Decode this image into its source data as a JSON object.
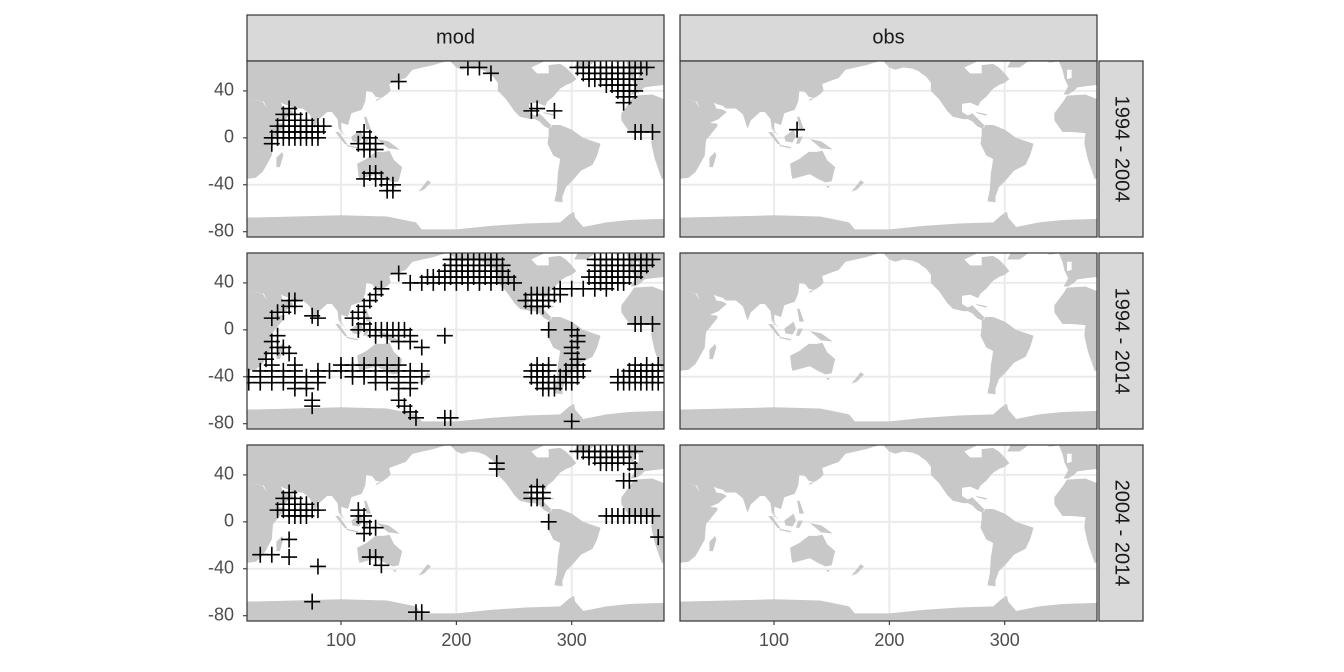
{
  "chart_data": {
    "type": "scatter",
    "columns": [
      "mod",
      "obs"
    ],
    "rows": [
      "1994 - 2004",
      "1994 - 2014",
      "2004 - 2014"
    ],
    "xlim": [
      18.5,
      380
    ],
    "xticks": [
      100,
      200,
      300
    ],
    "ylim": [
      -84.5,
      65.5
    ],
    "yticks": [
      40,
      0,
      -40,
      -80
    ],
    "grid": true,
    "color": "#000000",
    "land_color": "#c8c8c8",
    "panels": [
      [
        {
          "x": [
            40,
            45,
            50,
            55,
            60,
            65,
            70,
            75,
            80,
            45,
            50,
            55,
            60,
            65,
            70,
            75,
            80,
            45,
            50,
            55,
            60,
            65,
            70,
            75,
            80,
            85,
            50,
            55,
            60,
            65,
            70,
            50,
            55,
            60,
            55,
            40,
            120,
            125,
            120,
            125,
            130,
            115,
            120,
            125,
            130,
            120,
            125,
            130,
            130,
            135,
            140,
            145,
            140,
            145,
            150,
            210,
            220,
            230,
            265,
            270,
            285,
            305,
            310,
            315,
            320,
            325,
            330,
            335,
            340,
            345,
            350,
            355,
            360,
            365,
            310,
            315,
            320,
            325,
            330,
            335,
            340,
            345,
            350,
            355,
            315,
            320,
            325,
            330,
            335,
            340,
            345,
            350,
            355,
            330,
            335,
            340,
            345,
            350,
            340,
            345,
            350,
            355,
            345,
            350,
            345,
            355,
            360,
            370
          ],
          "y": [
            0,
            0,
            0,
            0,
            0,
            0,
            0,
            0,
            0,
            5,
            5,
            5,
            5,
            5,
            5,
            5,
            5,
            10,
            10,
            10,
            10,
            10,
            10,
            10,
            10,
            10,
            15,
            15,
            15,
            15,
            15,
            20,
            20,
            20,
            25,
            -5,
            5,
            0,
            -5,
            -5,
            -5,
            -5,
            -10,
            -10,
            -10,
            -35,
            -30,
            -30,
            -35,
            -35,
            -40,
            -40,
            -45,
            -45,
            48,
            60,
            60,
            55,
            23,
            25,
            23,
            60,
            60,
            60,
            60,
            60,
            60,
            60,
            60,
            60,
            60,
            60,
            60,
            60,
            55,
            55,
            55,
            55,
            55,
            55,
            55,
            55,
            55,
            55,
            50,
            50,
            50,
            50,
            50,
            50,
            50,
            50,
            50,
            45,
            45,
            45,
            45,
            45,
            40,
            40,
            40,
            40,
            35,
            35,
            30,
            5,
            5,
            5
          ]
        },
        {
          "x": [
            120
          ],
          "y": [
            7
          ]
        }
      ],
      [
        {
          "x": [
            150,
            195,
            200,
            205,
            210,
            215,
            220,
            225,
            230,
            235,
            195,
            200,
            205,
            210,
            215,
            220,
            225,
            230,
            235,
            240,
            190,
            195,
            200,
            205,
            210,
            215,
            220,
            225,
            230,
            235,
            240,
            175,
            180,
            185,
            190,
            195,
            200,
            205,
            210,
            215,
            220,
            225,
            230,
            235,
            240,
            245,
            160,
            170,
            180,
            190,
            200,
            210,
            220,
            230,
            240,
            250,
            320,
            325,
            330,
            335,
            340,
            345,
            350,
            355,
            360,
            365,
            370,
            320,
            325,
            330,
            335,
            340,
            345,
            350,
            355,
            360,
            365,
            320,
            325,
            330,
            335,
            340,
            345,
            350,
            355,
            360,
            315,
            320,
            325,
            330,
            335,
            340,
            345,
            350,
            355,
            320,
            325,
            330,
            335,
            340,
            345,
            290,
            300,
            310,
            320,
            330,
            265,
            270,
            275,
            280,
            285,
            290,
            260,
            265,
            270,
            275,
            280,
            265,
            270,
            275,
            55,
            60,
            45,
            50,
            55,
            60,
            40,
            80,
            75,
            110,
            115,
            120,
            125,
            130,
            135,
            120,
            120,
            115,
            125,
            130,
            135,
            140,
            145,
            150,
            155,
            130,
            140,
            150,
            160,
            150,
            160,
            170,
            190,
            40,
            60,
            100,
            110,
            120,
            130,
            140,
            150,
            30,
            40,
            50,
            60,
            80,
            90,
            100,
            110,
            120,
            130,
            140,
            150,
            160,
            170,
            20,
            30,
            40,
            50,
            60,
            70,
            80,
            110,
            120,
            130,
            140,
            150,
            160,
            170,
            20,
            30,
            40,
            50,
            60,
            70,
            80,
            130,
            140,
            150,
            160,
            60,
            70,
            150,
            160,
            75,
            75,
            150,
            155,
            160,
            165,
            190,
            195,
            40,
            45,
            50,
            55,
            45,
            40,
            35,
            270,
            280,
            300,
            305,
            265,
            270,
            275,
            280,
            295,
            300,
            305,
            310,
            265,
            270,
            275,
            280,
            290,
            295,
            300,
            305,
            270,
            275,
            280,
            285,
            290,
            295,
            300,
            275,
            280,
            285,
            280,
            300,
            305,
            305,
            300,
            300,
            305,
            355,
            365,
            375,
            350,
            355,
            360,
            365,
            370,
            375,
            340,
            345,
            350,
            355,
            360,
            365,
            370,
            375,
            340,
            345,
            350,
            355,
            360,
            365,
            370,
            375,
            355,
            360,
            370,
            300
          ],
          "y": [
            48,
            60,
            60,
            60,
            60,
            60,
            60,
            60,
            60,
            60,
            55,
            55,
            55,
            55,
            55,
            55,
            55,
            55,
            55,
            55,
            50,
            50,
            50,
            50,
            50,
            50,
            50,
            50,
            50,
            50,
            50,
            45,
            45,
            45,
            45,
            45,
            45,
            45,
            45,
            45,
            45,
            45,
            45,
            45,
            45,
            45,
            40,
            40,
            40,
            40,
            40,
            40,
            40,
            40,
            40,
            40,
            60,
            60,
            60,
            60,
            60,
            60,
            60,
            60,
            60,
            60,
            60,
            55,
            55,
            55,
            55,
            55,
            55,
            55,
            55,
            55,
            55,
            50,
            50,
            50,
            50,
            50,
            50,
            50,
            50,
            50,
            45,
            45,
            45,
            45,
            45,
            45,
            45,
            45,
            45,
            40,
            40,
            40,
            40,
            40,
            40,
            35,
            35,
            35,
            35,
            35,
            30,
            30,
            30,
            30,
            30,
            30,
            25,
            25,
            25,
            25,
            25,
            20,
            20,
            20,
            25,
            25,
            15,
            15,
            20,
            20,
            10,
            10,
            12,
            10,
            15,
            20,
            25,
            30,
            35,
            10,
            5,
            0,
            0,
            0,
            0,
            0,
            0,
            0,
            0,
            -5,
            -5,
            -5,
            -5,
            -10,
            -10,
            -15,
            -5,
            -30,
            -30,
            -30,
            -30,
            -30,
            -30,
            -30,
            -30,
            -35,
            -35,
            -35,
            -35,
            -35,
            -35,
            -35,
            -35,
            -35,
            -35,
            -35,
            -35,
            -35,
            -35,
            -40,
            -40,
            -40,
            -40,
            -40,
            -40,
            -40,
            -40,
            -40,
            -40,
            -40,
            -40,
            -40,
            -40,
            -45,
            -45,
            -45,
            -45,
            -45,
            -45,
            -45,
            -45,
            -45,
            -45,
            -45,
            -50,
            -50,
            -50,
            -50,
            -60,
            -65,
            -60,
            -65,
            -70,
            -75,
            -75,
            -75,
            -20,
            -15,
            -15,
            -20,
            -5,
            -10,
            -25,
            -30,
            -30,
            -30,
            -30,
            -35,
            -35,
            -35,
            -35,
            -35,
            -35,
            -35,
            -35,
            -40,
            -40,
            -40,
            -40,
            -40,
            -40,
            -40,
            -40,
            -45,
            -45,
            -45,
            -45,
            -45,
            -45,
            -45,
            -50,
            -50,
            -50,
            0,
            0,
            -5,
            -10,
            -15,
            -20,
            -25,
            -30,
            -30,
            -30,
            -35,
            -35,
            -35,
            -35,
            -35,
            -35,
            -40,
            -40,
            -40,
            -40,
            -40,
            -40,
            -40,
            -40,
            -45,
            -45,
            -45,
            -45,
            -45,
            -45,
            -45,
            -45,
            5,
            5,
            5,
            -78
          ]
        },
        {
          "x": [],
          "y": []
        }
      ],
      [
        {
          "x": [
            45,
            50,
            55,
            60,
            65,
            70,
            75,
            80,
            50,
            55,
            60,
            65,
            70,
            50,
            55,
            60,
            55,
            55,
            60,
            65,
            70,
            55,
            55,
            30,
            40,
            80,
            75,
            115,
            120,
            120,
            125,
            130,
            120,
            125,
            130,
            135,
            115,
            165,
            170,
            235,
            235,
            265,
            270,
            275,
            265,
            270,
            275,
            270,
            280,
            305,
            310,
            315,
            320,
            325,
            330,
            335,
            340,
            345,
            350,
            355,
            315,
            320,
            325,
            330,
            335,
            340,
            345,
            325,
            330,
            335,
            340,
            350,
            355,
            345,
            350,
            330,
            335,
            340,
            345,
            350,
            355,
            360,
            365,
            370,
            375
          ],
          "y": [
            10,
            10,
            10,
            10,
            10,
            10,
            10,
            10,
            15,
            15,
            15,
            15,
            15,
            20,
            20,
            20,
            25,
            5,
            5,
            5,
            5,
            -15,
            -30,
            -28,
            -28,
            -38,
            -68,
            10,
            5,
            0,
            -5,
            -5,
            -10,
            -30,
            -30,
            -37,
            5,
            -77,
            -77,
            50,
            45,
            25,
            25,
            25,
            20,
            20,
            20,
            30,
            0,
            60,
            60,
            60,
            60,
            60,
            60,
            60,
            60,
            60,
            60,
            60,
            55,
            55,
            55,
            55,
            55,
            55,
            55,
            50,
            50,
            50,
            50,
            50,
            45,
            35,
            35,
            5,
            5,
            5,
            5,
            5,
            5,
            5,
            5,
            5,
            -13
          ]
        },
        {
          "x": [],
          "y": []
        }
      ]
    ]
  }
}
